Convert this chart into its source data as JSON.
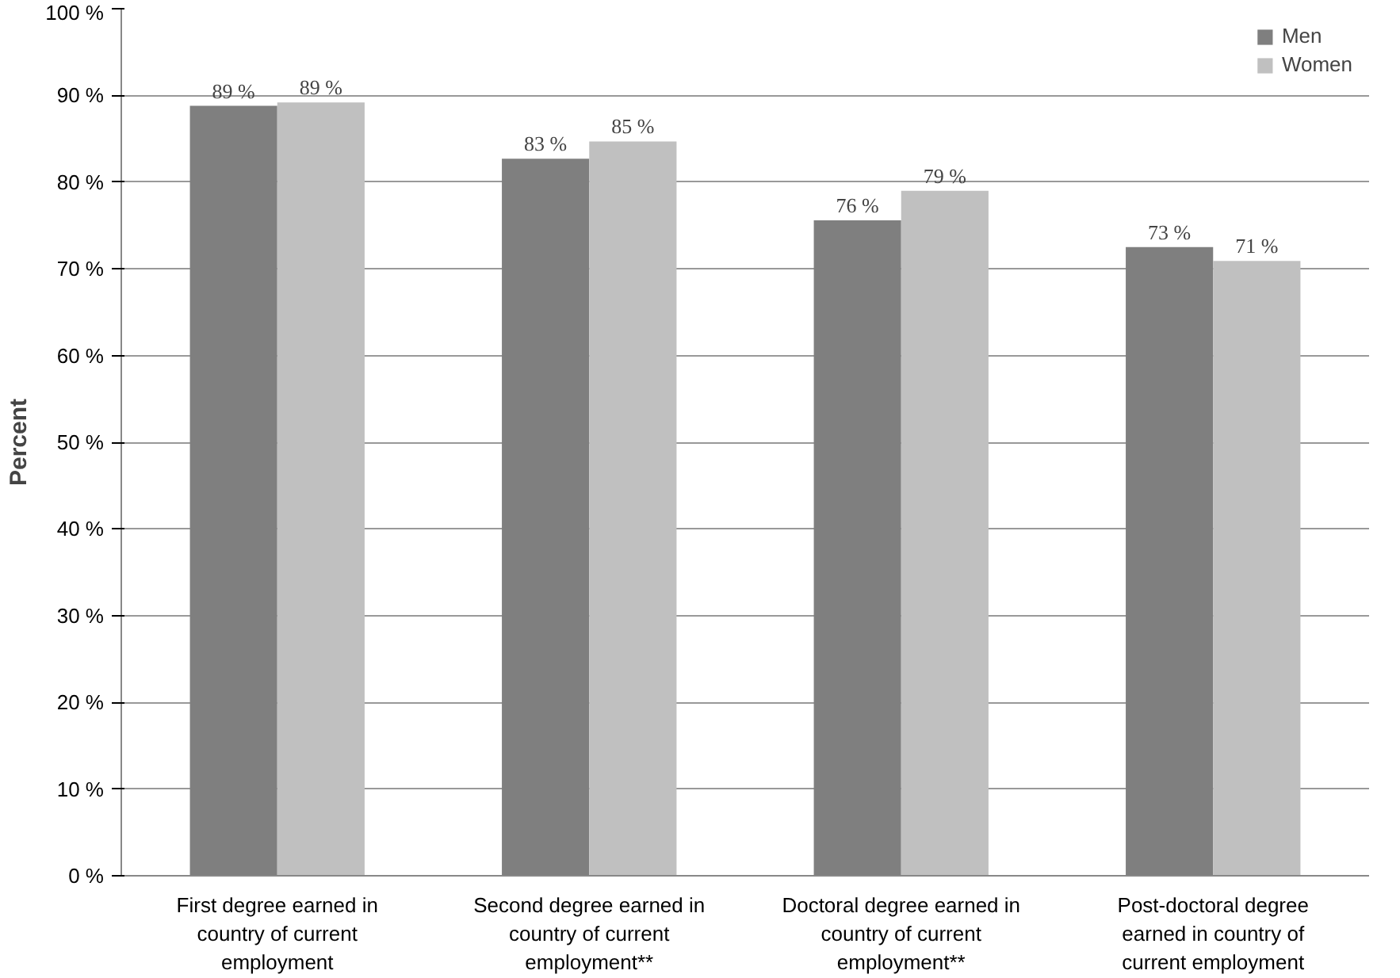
{
  "chart_data": {
    "type": "bar",
    "ylabel": "Percent",
    "categories": [
      "First degree earned in country of current employment",
      "Second degree earned in country of current employment**",
      "Doctoral degree earned in country of current employment**",
      "Post-doctoral degree earned in country of current employment"
    ],
    "series": [
      {
        "name": "Men",
        "color": "#7f7f7f",
        "values": [
          88.8,
          82.7,
          75.6,
          72.5
        ],
        "value_labels": [
          "89 %",
          "83 %",
          "76 %",
          "73 %"
        ]
      },
      {
        "name": "Women",
        "color": "#c0c0c0",
        "values": [
          89.2,
          84.7,
          79.0,
          70.9
        ],
        "value_labels": [
          "89 %",
          "85 %",
          "79 %",
          "71 %"
        ]
      }
    ],
    "ylim": [
      0,
      100
    ],
    "yticks": [
      {
        "value": 0,
        "label": "0 %"
      },
      {
        "value": 10,
        "label": "10 %"
      },
      {
        "value": 20,
        "label": "20 %"
      },
      {
        "value": 30,
        "label": "30 %"
      },
      {
        "value": 40,
        "label": "40 %"
      },
      {
        "value": 50,
        "label": "50 %"
      },
      {
        "value": 60,
        "label": "60 %"
      },
      {
        "value": 70,
        "label": "70 %"
      },
      {
        "value": 80,
        "label": "80 %"
      },
      {
        "value": 90,
        "label": "90 %"
      },
      {
        "value": 100,
        "label": "100 %"
      }
    ],
    "grid": "y",
    "legend": "top right"
  }
}
